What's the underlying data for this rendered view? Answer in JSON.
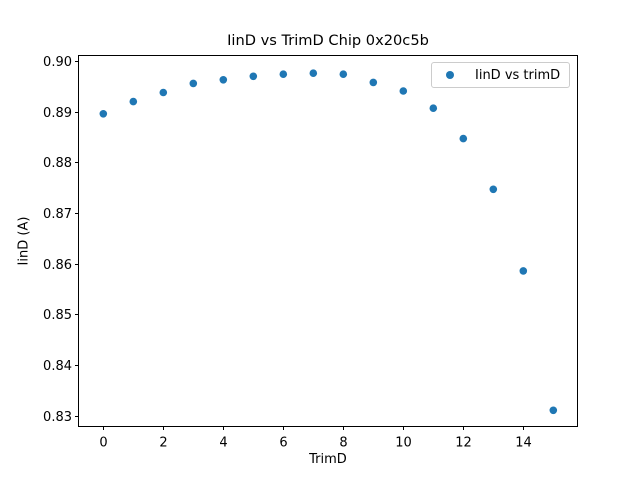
{
  "figure": {
    "title": "IinD vs TrimD Chip 0x20c5b",
    "xlabel": "TrimD",
    "ylabel": "IinD (A)",
    "background": "#ffffff"
  },
  "legend": {
    "label": "IinD vs trimD",
    "marker_color": "#1f77b4",
    "border_color": "#cccccc"
  },
  "chart_data": {
    "type": "scatter",
    "title": "IinD vs TrimD Chip 0x20c5b",
    "xlabel": "TrimD",
    "ylabel": "IinD (A)",
    "grid": false,
    "legend_position": "upper right",
    "series": [
      {
        "name": "IinD vs trimD",
        "color": "#1f77b4",
        "x": [
          0,
          1,
          2,
          3,
          4,
          5,
          6,
          7,
          8,
          9,
          10,
          11,
          12,
          13,
          14,
          15
        ],
        "y": [
          0.8896,
          0.892,
          0.8938,
          0.8956,
          0.8963,
          0.897,
          0.8974,
          0.8976,
          0.8974,
          0.8958,
          0.8941,
          0.8907,
          0.8847,
          0.8747,
          0.8586,
          0.8311
        ]
      }
    ],
    "xticks": [
      0,
      2,
      4,
      6,
      8,
      10,
      12,
      14
    ],
    "xtick_labels": [
      "0",
      "2",
      "4",
      "6",
      "8",
      "10",
      "12",
      "14"
    ],
    "yticks": [
      0.9,
      0.89,
      0.88,
      0.87,
      0.86,
      0.85,
      0.84,
      0.83
    ],
    "ytick_labels": [
      "0.90",
      "0.89",
      "0.88",
      "0.87",
      "0.86",
      "0.85",
      "0.84",
      "0.83"
    ],
    "xlim": [
      -0.81,
      15.79
    ],
    "ylim": [
      0.828,
      0.901
    ]
  }
}
